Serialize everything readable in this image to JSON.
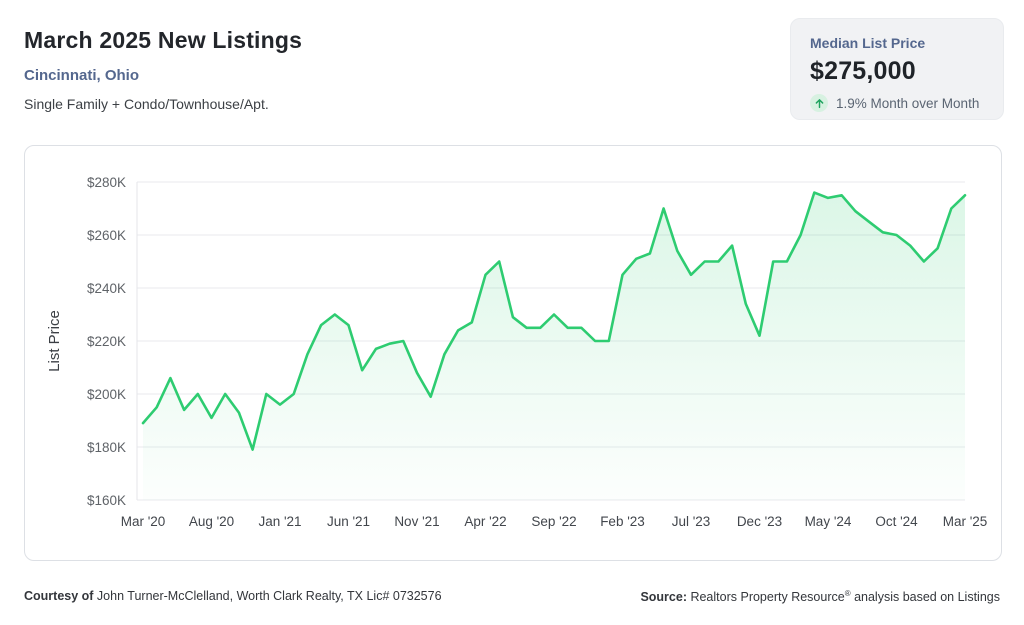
{
  "header": {
    "title": "March 2025 New Listings",
    "location": "Cincinnati, Ohio",
    "property_types": "Single Family + Condo/Townhouse/Apt."
  },
  "stat_card": {
    "label": "Median List Price",
    "value": "$275,000",
    "change": "1.9% Month over Month",
    "trend_icon": "arrow-up-icon",
    "trend_arrow_color": "#1fa35f",
    "trend_badge_bg": "#d7f1e1"
  },
  "chart_data": {
    "type": "area",
    "title": "",
    "xlabel": "",
    "ylabel": "List Price",
    "ylim": [
      160,
      280
    ],
    "y_ticks": [
      "$280K",
      "$260K",
      "$240K",
      "$220K",
      "$200K",
      "$180K",
      "$160K"
    ],
    "grid": true,
    "legend": "none",
    "line_color": "#2ecc71",
    "x_start": "Mar 2020",
    "x_end": "Mar 2025",
    "x_interval": "monthly",
    "x_tick_every": 5,
    "x_tick_labels": [
      "Mar '20",
      "Aug '20",
      "Jan '21",
      "Jun '21",
      "Nov '21",
      "Apr '22",
      "Sep '22",
      "Feb '23",
      "Jul '23",
      "Dec '23",
      "May '24",
      "Oct '24",
      "Mar '25"
    ],
    "series": [
      {
        "name": "Median List Price ($K)",
        "values": [
          189,
          195,
          206,
          194,
          200,
          191,
          200,
          193,
          179,
          200,
          196,
          200,
          215,
          226,
          230,
          226,
          209,
          217,
          219,
          220,
          208,
          199,
          215,
          224,
          227,
          245,
          250,
          229,
          225,
          225,
          230,
          225,
          225,
          220,
          220,
          245,
          251,
          253,
          270,
          254,
          245,
          250,
          250,
          256,
          234,
          222,
          250,
          250,
          260,
          276,
          274,
          275,
          269,
          265,
          261,
          260,
          256,
          250,
          255,
          270,
          275
        ]
      }
    ]
  },
  "footer": {
    "courtesy_label": "Courtesy of",
    "courtesy_text": " John Turner-McClelland, Worth Clark Realty, TX Lic# 0732576",
    "source_label": "Source:",
    "source_text_pre": " Realtors Property Resource",
    "source_sup": "®",
    "source_text_post": " analysis based on Listings"
  }
}
